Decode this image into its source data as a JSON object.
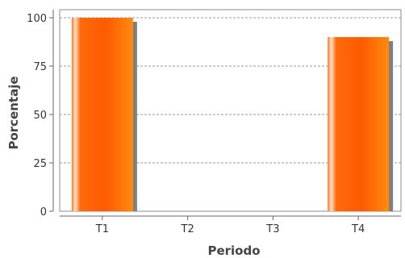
{
  "chart_data": {
    "type": "bar",
    "title": "",
    "xlabel": "Periodo",
    "ylabel": "Porcentaje",
    "categories": [
      "T1",
      "T2",
      "T3",
      "T4"
    ],
    "values": [
      100,
      0,
      0,
      90
    ],
    "ylim": [
      0,
      100
    ],
    "yticks": [
      0,
      25,
      50,
      75,
      100
    ],
    "grid": true,
    "bar_color": "#ff6600",
    "bar_highlight": "#ffe0cc",
    "bar_shadow": "#7f7f7f",
    "gridline_color": "#9a9a9a"
  }
}
